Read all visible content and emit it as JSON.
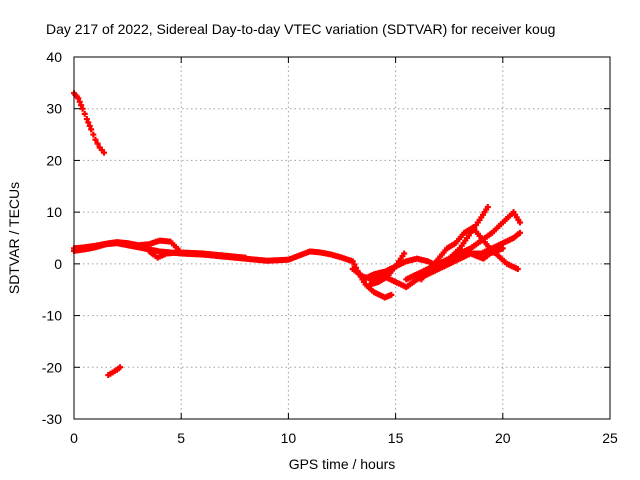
{
  "chart_data": {
    "type": "scatter",
    "title": "Day 217 of 2022, Sidereal Day-to-day VTEC variation (SDTVAR) for receiver koug",
    "xlabel": "GPS time / hours",
    "ylabel": "SDTVAR / TECUs",
    "xlim": [
      0,
      25
    ],
    "ylim": [
      -30,
      40
    ],
    "xticks": [
      "0",
      "5",
      "10",
      "15",
      "20",
      "25"
    ],
    "xtick_values": [
      0,
      5,
      10,
      15,
      20,
      25
    ],
    "yticks": [
      "40",
      "30",
      "20",
      "10",
      "0",
      "-10",
      "-20",
      "-30"
    ],
    "ytick_values": [
      40,
      30,
      20,
      10,
      0,
      -10,
      -20,
      -30
    ],
    "grid": true,
    "marker": "+",
    "color": "#ff0000",
    "series": [
      {
        "name": "arc-early-high",
        "x": [
          0.0,
          0.2,
          0.4,
          0.6,
          0.8,
          1.0,
          1.2,
          1.4
        ],
        "y": [
          33,
          32,
          30,
          28,
          26,
          24,
          22.5,
          21.5
        ]
      },
      {
        "name": "arc-early-low",
        "x": [
          1.6,
          1.8,
          2.0,
          2.15
        ],
        "y": [
          -21.5,
          -21,
          -20.5,
          -20
        ]
      },
      {
        "name": "arc-main",
        "x": [
          0.0,
          0.5,
          1.0,
          1.5,
          2.0,
          2.5,
          3.0,
          3.5,
          4.0,
          4.5,
          5.0,
          6.0,
          7.0,
          8.0,
          9.0,
          10.0,
          10.5,
          11.0,
          11.5,
          12.0,
          12.5,
          13.0,
          13.3,
          13.6,
          14.0,
          14.5,
          14.8
        ],
        "y": [
          2.5,
          2.8,
          3.2,
          3.8,
          4,
          3.6,
          3.2,
          2.8,
          2.4,
          2.2,
          2,
          1.8,
          1.4,
          1,
          0.6,
          0.8,
          1.6,
          2.4,
          2.2,
          1.8,
          1.2,
          0.5,
          -2,
          -4,
          -5.5,
          -6.5,
          -6
        ]
      },
      {
        "name": "arc-main-b",
        "x": [
          0.0,
          0.5,
          1.0,
          1.5,
          2.0,
          2.5,
          3.0,
          3.5,
          4.0,
          4.5,
          5.0,
          6.0,
          7.0,
          8.0
        ],
        "y": [
          3,
          3.2,
          3.5,
          3.9,
          4.2,
          4,
          3.6,
          3.8,
          4.5,
          4.3,
          2.2,
          2,
          1.6,
          1.2
        ]
      },
      {
        "name": "arc-mid-dip",
        "x": [
          3.5,
          3.7,
          3.9,
          4.1,
          4.3,
          4.6
        ],
        "y": [
          2.5,
          1.8,
          1.2,
          1.6,
          2.0,
          2.1
        ]
      },
      {
        "name": "arc-late-1",
        "x": [
          13.0,
          13.5,
          14.0,
          14.5,
          15.0,
          15.5,
          16.0,
          16.5,
          17.0,
          17.5,
          18.0,
          18.5,
          19.0,
          19.3
        ],
        "y": [
          -1,
          -2.5,
          -3,
          -2.5,
          -3.5,
          -4.5,
          -3,
          -2,
          -1,
          1,
          3,
          6,
          9,
          11
        ]
      },
      {
        "name": "arc-late-2",
        "x": [
          13.5,
          14.0,
          14.5,
          15.0,
          15.5,
          16.0,
          16.5,
          17.0,
          17.5,
          18.0,
          18.5
        ],
        "y": [
          -3,
          -2,
          -1.5,
          -0.5,
          0.5,
          1,
          0.5,
          -0.5,
          0.5,
          2,
          3
        ]
      },
      {
        "name": "arc-late-3",
        "x": [
          13.8,
          14.2,
          14.6,
          15.0,
          15.4
        ],
        "y": [
          -4,
          -3.5,
          -2.5,
          -0.5,
          2
        ]
      },
      {
        "name": "arc-late-4",
        "x": [
          15.5,
          16.0,
          16.5,
          17.0,
          17.5,
          18.0,
          18.5,
          19.0,
          19.5,
          20.0,
          20.5,
          20.8
        ],
        "y": [
          -3,
          -2,
          -1,
          0,
          1,
          2,
          3,
          4.5,
          6,
          8,
          10,
          8
        ]
      },
      {
        "name": "arc-late-5",
        "x": [
          16.2,
          16.6,
          17.0,
          17.4,
          17.8,
          18.2,
          18.6,
          19.0,
          19.4,
          19.8,
          20.2,
          20.7
        ],
        "y": [
          -3,
          -1,
          1,
          3,
          4,
          6,
          7,
          5,
          3,
          1.5,
          0,
          -1
        ]
      },
      {
        "name": "arc-late-6",
        "x": [
          17.0,
          17.5,
          18.0,
          18.5,
          19.0,
          19.5,
          20.0,
          20.5,
          20.8
        ],
        "y": [
          -1,
          0,
          1,
          2,
          2,
          3,
          4,
          5,
          6
        ]
      },
      {
        "name": "arc-late-7",
        "x": [
          18.5,
          18.8,
          19.1,
          19.4,
          19.7,
          20.0
        ],
        "y": [
          2,
          1.5,
          1,
          2,
          2.5,
          3
        ]
      }
    ]
  }
}
